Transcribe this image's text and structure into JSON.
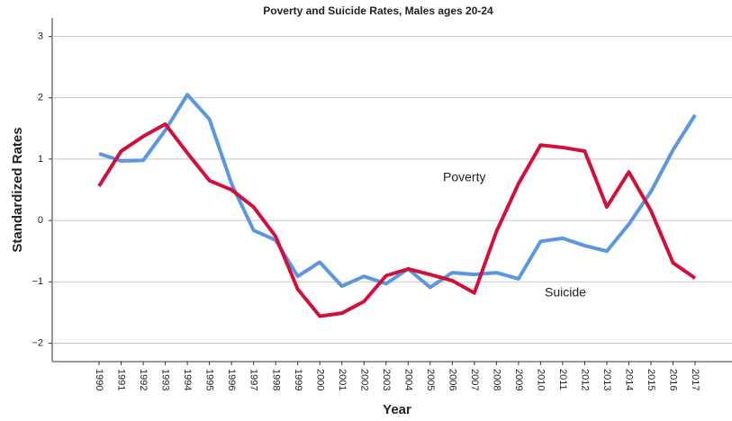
{
  "chart_data": {
    "type": "line",
    "title": "Poverty and Suicide Rates, Males ages 20-24",
    "x_label": "Year",
    "y_label": "Standardized Rates",
    "categories": [
      "1990",
      "1991",
      "1992",
      "1993",
      "1994",
      "1995",
      "1996",
      "1997",
      "1998",
      "1999",
      "2000",
      "2001",
      "2002",
      "2003",
      "2004",
      "2005",
      "2006",
      "2007",
      "2008",
      "2009",
      "2010",
      "2011",
      "2012",
      "2013",
      "2014",
      "2015",
      "2016",
      "2017"
    ],
    "series": [
      {
        "name": "Suicide",
        "color": "#5b97e0",
        "values": [
          1.09,
          0.97,
          0.98,
          1.47,
          2.05,
          1.65,
          0.6,
          -0.16,
          -0.32,
          -0.91,
          -0.68,
          -1.07,
          -0.91,
          -1.03,
          -0.79,
          -1.09,
          -0.85,
          -0.88,
          -0.85,
          -0.95,
          -0.34,
          -0.29,
          -0.41,
          -0.5,
          -0.06,
          0.47,
          1.15,
          1.72
        ]
      },
      {
        "name": "Poverty",
        "color": "#d0103a",
        "values": [
          0.56,
          1.13,
          1.37,
          1.57,
          1.1,
          0.65,
          0.5,
          0.22,
          -0.26,
          -1.12,
          -1.56,
          -1.51,
          -1.32,
          -0.9,
          -0.79,
          -0.88,
          -0.98,
          -1.18,
          -0.18,
          0.6,
          1.23,
          1.19,
          1.13,
          0.22,
          0.79,
          0.16,
          -0.69,
          -0.94
        ]
      }
    ],
    "ylim": [
      -2.3,
      3.3
    ],
    "yticks": [
      {
        "value": -2,
        "label": "−2"
      },
      {
        "value": -1,
        "label": "−1"
      },
      0,
      1,
      2,
      3
    ],
    "grid": true
  }
}
